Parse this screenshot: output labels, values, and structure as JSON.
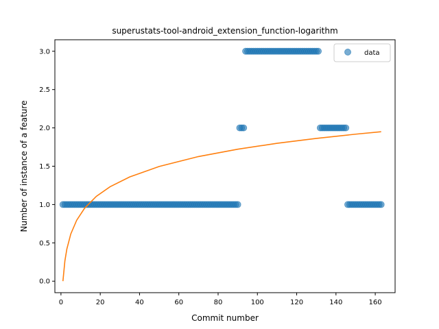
{
  "chart_data": {
    "type": "scatter",
    "title": "superustats-tool-android_extension_function-logarithm",
    "xlabel": "Commit number",
    "ylabel": "Number of instance of a feature",
    "xlim": [
      -3.1,
      170.1
    ],
    "ylim": [
      -0.15,
      3.15
    ],
    "xticks": [
      0,
      20,
      40,
      60,
      80,
      100,
      120,
      140,
      160
    ],
    "yticks": [
      0.0,
      0.5,
      1.0,
      1.5,
      2.0,
      2.5,
      3.0
    ],
    "ytick_labels": [
      "0.0",
      "0.5",
      "1.0",
      "1.5",
      "2.0",
      "2.5",
      "3.0"
    ],
    "grid": false,
    "legend": {
      "placement": "top-right",
      "entries": [
        "data"
      ]
    },
    "colors": {
      "data": "#1f77b4",
      "fit": "#ff7f0e"
    },
    "series": [
      {
        "name": "data",
        "kind": "scatter",
        "segments": [
          {
            "x_from": 1,
            "x_to": 90,
            "y": 1
          },
          {
            "x_from": 91,
            "x_to": 93,
            "y": 2
          },
          {
            "x_from": 94,
            "x_to": 131,
            "y": 3
          },
          {
            "x_from": 132,
            "x_to": 145,
            "y": 2
          },
          {
            "x_from": 146,
            "x_to": 163,
            "y": 1
          }
        ]
      },
      {
        "kind": "line",
        "model": "logarithmic",
        "x": [
          1,
          2,
          3,
          5,
          8,
          12,
          18,
          25,
          35,
          50,
          70,
          90,
          110,
          130,
          150,
          163
        ],
        "y": [
          0.0,
          0.265,
          0.42,
          0.616,
          0.795,
          0.951,
          1.107,
          1.232,
          1.36,
          1.497,
          1.626,
          1.722,
          1.799,
          1.863,
          1.918,
          1.95
        ]
      }
    ]
  }
}
